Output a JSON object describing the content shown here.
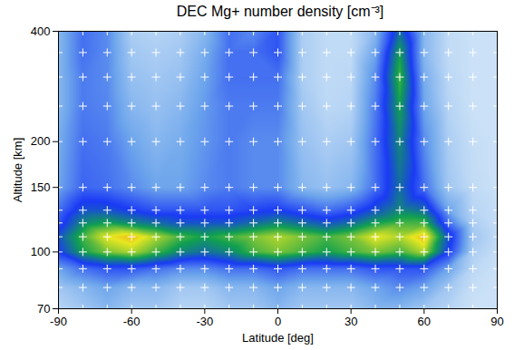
{
  "chart_data": {
    "type": "heatmap",
    "title": "DEC Mg+ number density [cm⁻³]",
    "x_label": "Latitude [deg]",
    "y_label": "Altitude [km]",
    "x": [
      -90,
      -80,
      -70,
      -60,
      -50,
      -40,
      -30,
      -20,
      -10,
      0,
      10,
      20,
      30,
      40,
      50,
      60,
      70,
      80,
      90
    ],
    "y": [
      70,
      80,
      90,
      100,
      110,
      120,
      130,
      150,
      200,
      250,
      300,
      350,
      400
    ],
    "cells": [
      [
        60,
        100,
        150,
        100,
        100,
        60,
        60,
        100,
        100,
        150,
        100,
        100,
        100,
        150,
        150,
        100,
        60,
        20,
        20
      ],
      [
        100,
        150,
        200,
        150,
        150,
        100,
        100,
        150,
        150,
        200,
        150,
        150,
        150,
        200,
        250,
        200,
        100,
        30,
        20
      ],
      [
        200,
        300,
        350,
        350,
        300,
        250,
        250,
        300,
        300,
        350,
        300,
        300,
        300,
        350,
        350,
        350,
        200,
        50,
        20
      ],
      [
        400,
        600,
        700,
        750,
        650,
        550,
        500,
        550,
        650,
        700,
        650,
        600,
        650,
        700,
        650,
        750,
        400,
        80,
        30
      ],
      [
        450,
        650,
        800,
        850,
        750,
        650,
        600,
        650,
        700,
        750,
        700,
        650,
        700,
        800,
        750,
        850,
        450,
        100,
        40
      ],
      [
        350,
        550,
        600,
        550,
        500,
        450,
        450,
        450,
        500,
        550,
        500,
        450,
        500,
        600,
        650,
        650,
        300,
        80,
        30
      ],
      [
        300,
        450,
        450,
        400,
        350,
        350,
        350,
        350,
        380,
        400,
        350,
        300,
        350,
        450,
        550,
        500,
        200,
        60,
        30
      ],
      [
        200,
        320,
        300,
        250,
        200,
        200,
        250,
        280,
        250,
        250,
        150,
        120,
        150,
        300,
        500,
        300,
        100,
        40,
        20
      ],
      [
        180,
        300,
        280,
        200,
        150,
        180,
        230,
        280,
        250,
        250,
        120,
        80,
        100,
        300,
        550,
        250,
        80,
        30,
        20
      ],
      [
        150,
        280,
        260,
        150,
        120,
        150,
        220,
        280,
        280,
        280,
        100,
        50,
        60,
        280,
        600,
        200,
        60,
        20,
        20
      ],
      [
        150,
        280,
        250,
        120,
        100,
        120,
        200,
        300,
        300,
        300,
        80,
        40,
        50,
        250,
        650,
        180,
        50,
        20,
        20
      ],
      [
        150,
        300,
        250,
        100,
        80,
        100,
        180,
        300,
        300,
        350,
        80,
        40,
        40,
        200,
        600,
        150,
        40,
        20,
        20
      ],
      [
        150,
        300,
        250,
        80,
        60,
        80,
        150,
        300,
        250,
        350,
        80,
        40,
        40,
        150,
        500,
        150,
        40,
        20,
        20
      ]
    ],
    "color_range": [
      0,
      1000
    ],
    "xlim": [
      -90,
      90
    ],
    "ylim": [
      70,
      400
    ],
    "xticks": [
      -90,
      -60,
      -30,
      0,
      30,
      60,
      90
    ],
    "yticks": [
      70,
      100,
      150,
      200,
      400
    ],
    "log": "y",
    "marker": "plus"
  }
}
